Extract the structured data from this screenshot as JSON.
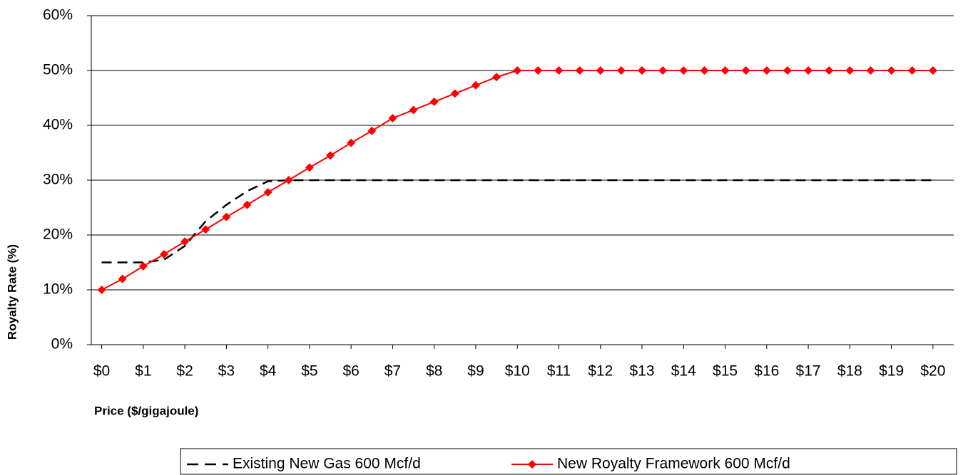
{
  "chart_data": {
    "type": "line",
    "xlabel": "Price ($/gigajoule)",
    "ylabel": "Royalty Rate (%)",
    "x": [
      0,
      0.5,
      1,
      1.5,
      2,
      2.5,
      3,
      3.5,
      4,
      4.5,
      5,
      5.5,
      6,
      6.5,
      7,
      7.5,
      8,
      8.5,
      9,
      9.5,
      10,
      10.5,
      11,
      11.5,
      12,
      12.5,
      13,
      13.5,
      14,
      14.5,
      15,
      15.5,
      16,
      16.5,
      17,
      17.5,
      18,
      18.5,
      19,
      19.5,
      20
    ],
    "series": [
      {
        "name": "Existing New Gas 600 Mcf/d",
        "color": "#000000",
        "dashed": true,
        "values": [
          15,
          15,
          15,
          15.5,
          18,
          22.5,
          25.5,
          28,
          29.8,
          30,
          30,
          30,
          30,
          30,
          30,
          30,
          30,
          30,
          30,
          30,
          30,
          30,
          30,
          30,
          30,
          30,
          30,
          30,
          30,
          30,
          30,
          30,
          30,
          30,
          30,
          30,
          30,
          30,
          30,
          30,
          30
        ]
      },
      {
        "name": "New Royalty Framework 600 Mcf/d",
        "color": "#ff0000",
        "marker": "diamond",
        "values": [
          10,
          12,
          14.3,
          16.5,
          18.8,
          21,
          23.3,
          25.5,
          27.8,
          30,
          32.3,
          34.5,
          36.8,
          39,
          41.3,
          42.8,
          44.3,
          45.8,
          47.3,
          48.8,
          50,
          50,
          50,
          50,
          50,
          50,
          50,
          50,
          50,
          50,
          50,
          50,
          50,
          50,
          50,
          50,
          50,
          50,
          50,
          50,
          50
        ]
      }
    ],
    "xlim": [
      -0.25,
      20.5
    ],
    "xticks": [
      {
        "value": 0,
        "label": "$0"
      },
      {
        "value": 1,
        "label": "$1"
      },
      {
        "value": 2,
        "label": "$2"
      },
      {
        "value": 3,
        "label": "$3"
      },
      {
        "value": 4,
        "label": "$4"
      },
      {
        "value": 5,
        "label": "$5"
      },
      {
        "value": 6,
        "label": "$6"
      },
      {
        "value": 7,
        "label": "$7"
      },
      {
        "value": 8,
        "label": "$8"
      },
      {
        "value": 9,
        "label": "$9"
      },
      {
        "value": 10,
        "label": "$10"
      },
      {
        "value": 11,
        "label": "$11"
      },
      {
        "value": 12,
        "label": "$12"
      },
      {
        "value": 13,
        "label": "$13"
      },
      {
        "value": 14,
        "label": "$14"
      },
      {
        "value": 15,
        "label": "$15"
      },
      {
        "value": 16,
        "label": "$16"
      },
      {
        "value": 17,
        "label": "$17"
      },
      {
        "value": 18,
        "label": "$18"
      },
      {
        "value": 19,
        "label": "$19"
      },
      {
        "value": 20,
        "label": "$20"
      }
    ],
    "ylim": [
      0,
      60
    ],
    "yticks": [
      {
        "value": 0,
        "label": "0%"
      },
      {
        "value": 10,
        "label": "10%"
      },
      {
        "value": 20,
        "label": "20%"
      },
      {
        "value": 30,
        "label": "30%"
      },
      {
        "value": 40,
        "label": "40%"
      },
      {
        "value": 50,
        "label": "50%"
      },
      {
        "value": 60,
        "label": "60%"
      }
    ],
    "grid": true,
    "legend": "bottom"
  }
}
